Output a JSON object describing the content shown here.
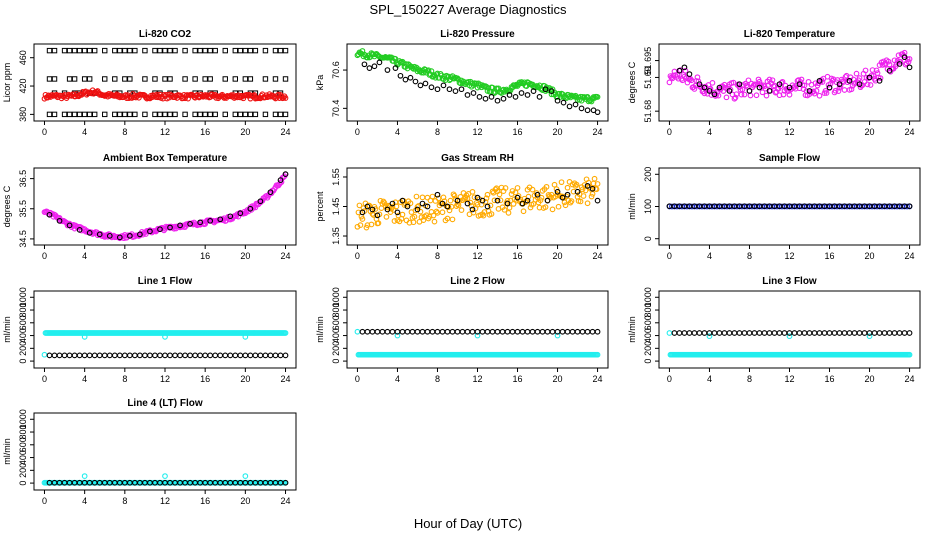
{
  "title": "SPL_150227  Average Diagnostics",
  "xlabel": "Hour of Day (UTC)",
  "colors": {
    "black": "#000000",
    "red": "#ee1111",
    "green": "#22cc22",
    "magenta": "#ee22ee",
    "orange": "#ffaa00",
    "cyan": "#22eeee",
    "blue": "#1122cc"
  },
  "chart_data": [
    {
      "type": "scatter",
      "title": "Li-820 CO2",
      "xlabel": "",
      "ylabel": "Licor ppm",
      "xlim": [
        0,
        24
      ],
      "ylim": [
        375,
        475
      ],
      "xticks": [
        0,
        4,
        8,
        12,
        16,
        20,
        24
      ],
      "yticks": [
        380,
        420,
        460
      ],
      "series": [
        {
          "color": "black",
          "marker": "square",
          "style": "levels",
          "levels": [
            380,
            410,
            430,
            470
          ],
          "x": [
            0.5,
            1,
            2,
            2.5,
            3,
            3.5,
            4,
            4.5,
            5,
            6,
            7,
            7.5,
            8,
            8.5,
            9,
            10,
            11,
            11.5,
            12,
            12.5,
            13,
            14,
            15,
            15.5,
            16,
            16.5,
            17,
            18,
            19,
            19.5,
            20,
            20.5,
            21,
            22,
            23,
            23.5,
            24
          ]
        },
        {
          "color": "red",
          "marker": "circle",
          "style": "band",
          "y": [
            405,
            406,
            405,
            406,
            410,
            412,
            407,
            406,
            405,
            406,
            405,
            406,
            405,
            406,
            405,
            405,
            406,
            405,
            405,
            406,
            405,
            405,
            406,
            405,
            405
          ],
          "spread": 3
        }
      ]
    },
    {
      "type": "scatter",
      "title": "Li-820 Pressure",
      "xlabel": "",
      "ylabel": "kPa",
      "xlim": [
        0,
        24
      ],
      "ylim": [
        70.35,
        70.72
      ],
      "xticks": [
        0,
        4,
        8,
        12,
        16,
        20,
        24
      ],
      "yticks": [
        70.4,
        70.6
      ],
      "series": [
        {
          "color": "green",
          "marker": "circle",
          "style": "band",
          "y": [
            70.69,
            70.68,
            70.67,
            70.66,
            70.64,
            70.62,
            70.6,
            70.59,
            70.57,
            70.56,
            70.55,
            70.53,
            70.52,
            70.5,
            70.49,
            70.5,
            70.52,
            70.53,
            70.52,
            70.5,
            70.47,
            70.46,
            70.45,
            70.45,
            70.45
          ],
          "spread": 0.015
        },
        {
          "color": "black",
          "marker": "circle",
          "style": "points",
          "x": [
            0.7,
            1.2,
            1.7,
            2.2,
            3,
            3.8,
            4.3,
            4.8,
            5.3,
            5.8,
            6.3,
            6.8,
            7.4,
            8,
            8.6,
            9.2,
            9.8,
            10.4,
            11,
            11.6,
            12.2,
            12.8,
            13.4,
            14,
            14.6,
            15.2,
            15.8,
            16.4,
            17,
            17.6,
            18.2,
            18.8,
            19.4,
            20,
            20.6,
            21.2,
            21.8,
            22.4,
            23,
            23.6,
            24
          ],
          "y": [
            70.63,
            70.61,
            70.62,
            70.64,
            70.6,
            70.61,
            70.57,
            70.55,
            70.56,
            70.54,
            70.52,
            70.53,
            70.51,
            70.5,
            70.52,
            70.5,
            70.49,
            70.5,
            70.47,
            70.48,
            70.46,
            70.45,
            70.46,
            70.44,
            70.45,
            70.47,
            70.46,
            70.48,
            70.47,
            70.49,
            70.46,
            70.5,
            70.49,
            70.44,
            70.43,
            70.41,
            70.42,
            70.4,
            70.39,
            70.39,
            70.38
          ]
        }
      ]
    },
    {
      "type": "scatter",
      "title": "Li-820 Temperature",
      "xlabel": "",
      "ylabel": "degrees C",
      "xlim": [
        0,
        24
      ],
      "ylim": [
        51.678,
        51.699
      ],
      "xticks": [
        0,
        4,
        8,
        12,
        16,
        20,
        24
      ],
      "yticks": [
        51.68,
        51.69,
        51.695
      ],
      "series": [
        {
          "color": "magenta",
          "marker": "circle",
          "style": "band",
          "y": [
            51.69,
            51.691,
            51.689,
            51.688,
            51.687,
            51.686,
            51.686,
            51.686,
            51.687,
            51.687,
            51.687,
            51.687,
            51.687,
            51.687,
            51.687,
            51.687,
            51.688,
            51.688,
            51.688,
            51.689,
            51.69,
            51.692,
            51.694,
            51.696,
            51.695
          ],
          "spread": 0.0025
        },
        {
          "color": "black",
          "marker": "circle",
          "style": "points",
          "x": [
            1,
            1.5,
            2,
            3,
            3.5,
            4,
            4.5,
            5,
            6,
            7,
            8,
            9,
            10,
            11,
            12,
            13,
            14,
            15,
            16,
            17,
            18,
            19,
            20,
            21,
            22,
            23,
            23.5,
            24
          ],
          "y": [
            51.692,
            51.693,
            51.691,
            51.688,
            51.687,
            51.686,
            51.685,
            51.687,
            51.686,
            51.688,
            51.686,
            51.687,
            51.686,
            51.688,
            51.687,
            51.688,
            51.686,
            51.689,
            51.687,
            51.688,
            51.689,
            51.688,
            51.69,
            51.689,
            51.692,
            51.694,
            51.696,
            51.693
          ]
        }
      ]
    },
    {
      "type": "scatter",
      "title": "Ambient Box Temperature",
      "xlabel": "",
      "ylabel": "degrees C",
      "xlim": [
        0,
        24
      ],
      "ylim": [
        34.4,
        36.75
      ],
      "xticks": [
        0,
        4,
        8,
        12,
        16,
        20,
        24
      ],
      "yticks": [
        34.5,
        35.5,
        36.5
      ],
      "series": [
        {
          "color": "magenta",
          "marker": "circle",
          "style": "band",
          "y": [
            35.4,
            35.25,
            35.05,
            34.9,
            34.8,
            34.7,
            34.62,
            34.58,
            34.58,
            34.62,
            34.7,
            34.78,
            34.85,
            34.9,
            34.95,
            35.0,
            35.05,
            35.1,
            35.15,
            35.25,
            35.4,
            35.6,
            35.85,
            36.2,
            36.6
          ],
          "spread": 0.06
        },
        {
          "color": "black",
          "marker": "circle",
          "style": "points",
          "x": [
            0.5,
            1.5,
            2.5,
            3.5,
            4.5,
            5.5,
            6.5,
            7.5,
            8.5,
            9.5,
            10.5,
            11.5,
            12.5,
            13.5,
            14.5,
            15.5,
            16.5,
            17.5,
            18.5,
            19.5,
            20.5,
            21.5,
            22.5,
            23.5,
            24
          ],
          "y": [
            35.3,
            35.1,
            34.95,
            34.8,
            34.7,
            34.65,
            34.6,
            34.55,
            34.6,
            34.65,
            34.75,
            34.82,
            34.88,
            34.95,
            35.0,
            35.05,
            35.1,
            35.15,
            35.25,
            35.35,
            35.5,
            35.75,
            36.05,
            36.45,
            36.65
          ]
        }
      ]
    },
    {
      "type": "scatter",
      "title": "Gas Stream RH",
      "xlabel": "",
      "ylabel": "percent",
      "xlim": [
        0,
        24
      ],
      "ylim": [
        1.33,
        1.57
      ],
      "xticks": [
        0,
        4,
        8,
        12,
        16,
        20,
        24
      ],
      "yticks": [
        1.35,
        1.45,
        1.55
      ],
      "series": [
        {
          "color": "orange",
          "marker": "circle",
          "style": "band",
          "y": [
            1.42,
            1.42,
            1.43,
            1.43,
            1.43,
            1.44,
            1.44,
            1.44,
            1.44,
            1.45,
            1.45,
            1.46,
            1.46,
            1.46,
            1.47,
            1.47,
            1.47,
            1.48,
            1.48,
            1.48,
            1.49,
            1.49,
            1.49,
            1.5,
            1.5
          ],
          "spread": 0.045
        },
        {
          "color": "black",
          "marker": "circle",
          "style": "points",
          "x": [
            0.5,
            1,
            1.5,
            2,
            3,
            3.5,
            4,
            4.5,
            5,
            6,
            6.5,
            7,
            8,
            8.5,
            9,
            10,
            11,
            11.5,
            12,
            12.5,
            13,
            14,
            15,
            16,
            16.5,
            17,
            18,
            19,
            20,
            20.5,
            21,
            22,
            23,
            23.5,
            24
          ],
          "y": [
            1.43,
            1.45,
            1.44,
            1.42,
            1.44,
            1.46,
            1.43,
            1.47,
            1.45,
            1.44,
            1.46,
            1.45,
            1.49,
            1.46,
            1.45,
            1.47,
            1.46,
            1.44,
            1.48,
            1.47,
            1.45,
            1.47,
            1.46,
            1.48,
            1.46,
            1.47,
            1.49,
            1.47,
            1.5,
            1.48,
            1.49,
            1.5,
            1.52,
            1.51,
            1.47
          ]
        }
      ]
    },
    {
      "type": "scatter",
      "title": "Sample Flow",
      "xlabel": "",
      "ylabel": "ml/min",
      "xlim": [
        0,
        24
      ],
      "ylim": [
        -10,
        210
      ],
      "xticks": [
        0,
        4,
        8,
        12,
        16,
        20,
        24
      ],
      "yticks": [
        0,
        100,
        200
      ],
      "series": [
        {
          "color": "blue",
          "marker": "circle",
          "style": "flat",
          "y": 100,
          "step": 0.25
        },
        {
          "color": "black",
          "marker": "circle",
          "style": "flat",
          "y": 101,
          "step": 0.5
        }
      ]
    },
    {
      "type": "scatter",
      "title": "Line 1 Flow",
      "xlabel": "",
      "ylabel": "ml/min",
      "xlim": [
        0,
        24
      ],
      "ylim": [
        -60,
        1050
      ],
      "xticks": [
        0,
        4,
        8,
        12,
        16,
        20,
        24
      ],
      "yticks": [
        0,
        200,
        400,
        600,
        800,
        1000
      ],
      "series": [
        {
          "color": "cyan",
          "marker": "circle",
          "style": "flat",
          "y": 440,
          "step": 0.1,
          "x0": 0.1
        },
        {
          "color": "cyan",
          "marker": "circle",
          "style": "points",
          "x": [
            0,
            4,
            12,
            20
          ],
          "y": [
            100,
            380,
            380,
            380
          ]
        },
        {
          "color": "black",
          "marker": "circle",
          "style": "flat",
          "y": 90,
          "step": 0.5,
          "x0": 0.5
        }
      ]
    },
    {
      "type": "scatter",
      "title": "Line 2 Flow",
      "xlabel": "",
      "ylabel": "ml/min",
      "xlim": [
        0,
        24
      ],
      "ylim": [
        -60,
        1050
      ],
      "xticks": [
        0,
        4,
        8,
        12,
        16,
        20,
        24
      ],
      "yticks": [
        0,
        200,
        400,
        600,
        800,
        1000
      ],
      "series": [
        {
          "color": "cyan",
          "marker": "circle",
          "style": "flat",
          "y": 100,
          "step": 0.1,
          "x0": 0.1
        },
        {
          "color": "cyan",
          "marker": "circle",
          "style": "points",
          "x": [
            0,
            4,
            12,
            20
          ],
          "y": [
            460,
            400,
            400,
            400
          ]
        },
        {
          "color": "black",
          "marker": "circle",
          "style": "flat",
          "y": 460,
          "step": 0.5,
          "x0": 0.5
        }
      ]
    },
    {
      "type": "scatter",
      "title": "Line 3 Flow",
      "xlabel": "",
      "ylabel": "ml/min",
      "xlim": [
        0,
        24
      ],
      "ylim": [
        -60,
        1050
      ],
      "xticks": [
        0,
        4,
        8,
        12,
        16,
        20,
        24
      ],
      "yticks": [
        0,
        200,
        400,
        600,
        800,
        1000
      ],
      "series": [
        {
          "color": "cyan",
          "marker": "circle",
          "style": "flat",
          "y": 100,
          "step": 0.1,
          "x0": 0.1
        },
        {
          "color": "cyan",
          "marker": "circle",
          "style": "points",
          "x": [
            0,
            4,
            12,
            20
          ],
          "y": [
            440,
            390,
            390,
            390
          ]
        },
        {
          "color": "black",
          "marker": "circle",
          "style": "flat",
          "y": 440,
          "step": 0.5,
          "x0": 0.5
        }
      ]
    },
    {
      "type": "scatter",
      "title": "Line 4 (LT) Flow",
      "xlabel": "",
      "ylabel": "ml/min",
      "xlim": [
        0,
        24
      ],
      "ylim": [
        -60,
        1050
      ],
      "xticks": [
        0,
        4,
        8,
        12,
        16,
        20,
        24
      ],
      "yticks": [
        0,
        200,
        400,
        600,
        800,
        1000
      ],
      "series": [
        {
          "color": "cyan",
          "marker": "circle",
          "style": "flat",
          "y": 5,
          "step": 0.1,
          "x0": 0.1
        },
        {
          "color": "cyan",
          "marker": "circle",
          "style": "points",
          "x": [
            0,
            4,
            12,
            20
          ],
          "y": [
            5,
            110,
            110,
            110
          ]
        },
        {
          "color": "black",
          "marker": "circle",
          "style": "flat",
          "y": 5,
          "step": 0.5,
          "x0": 0.5
        }
      ]
    }
  ]
}
